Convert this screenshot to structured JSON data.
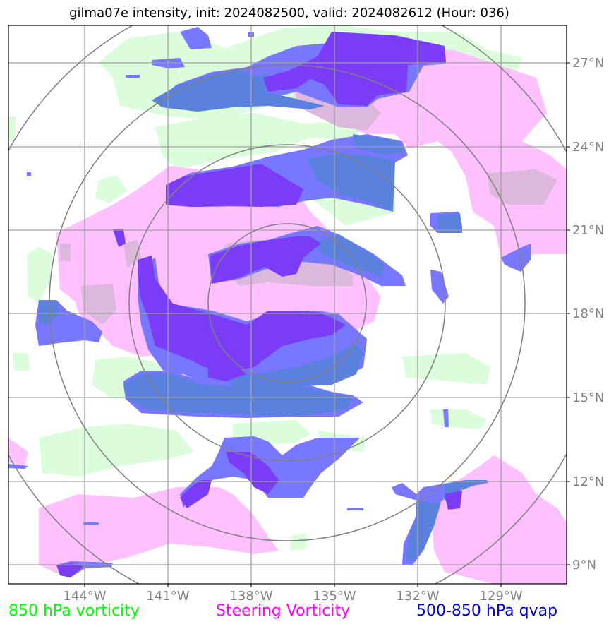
{
  "title": "gilma07e intensity, init: 2024082500, valid: 2024082612 (Hour: 036)",
  "axes": {
    "lon_labels": [
      "144°W",
      "141°W",
      "138°W",
      "135°W",
      "132°W",
      "129°W"
    ],
    "lat_labels": [
      "27°N",
      "24°N",
      "21°N",
      "18°N",
      "15°N",
      "12°N",
      "9°N"
    ]
  },
  "legend": {
    "vorticity_850": {
      "label": "850 hPa vorticity",
      "color": "#00ff00"
    },
    "steering": {
      "label": "Steering Vorticity",
      "color": "#ff00ff"
    },
    "qvap": {
      "label": "500-850 hPa qvap",
      "color": "#0000cc"
    }
  },
  "layer_colors": {
    "green_fill": "#dcfddc",
    "pink_fill": "#ffc0ff",
    "pink_purple_overlap": "#dcb8dc",
    "blue_fill": "#7777ff",
    "dark_blue_fill": "#5a81de",
    "purple_fill": "#7a3cf7",
    "grid": "#a0a0a0",
    "range_rings": "#808080"
  }
}
